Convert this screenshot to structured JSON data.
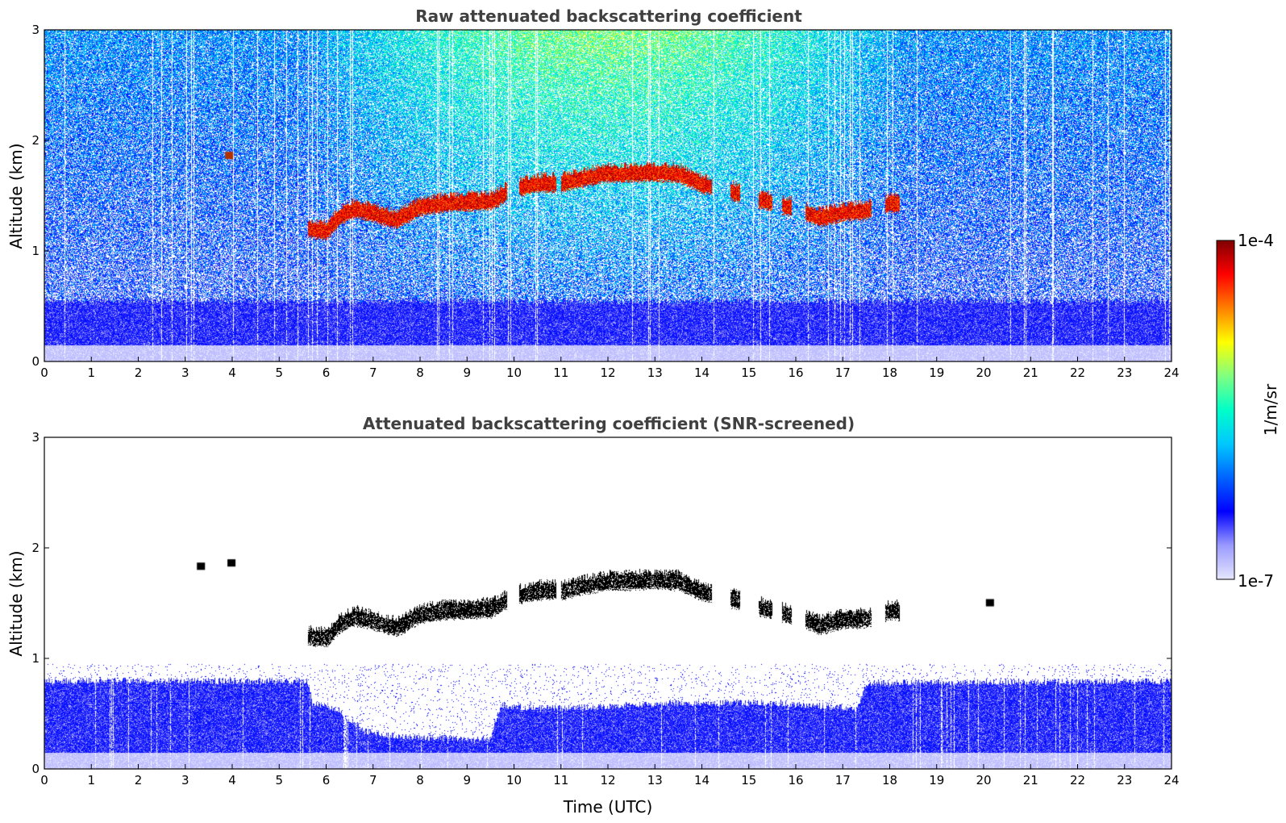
{
  "chart_data": [
    {
      "type": "heatmap",
      "title": "Raw attenuated backscattering coefficient",
      "xlabel": "",
      "ylabel": "Altitude (km)",
      "xlim": [
        0,
        24
      ],
      "ylim": [
        0,
        3
      ],
      "x_ticks": [
        "0",
        "1",
        "2",
        "3",
        "4",
        "5",
        "6",
        "7",
        "8",
        "9",
        "10",
        "11",
        "12",
        "13",
        "14",
        "15",
        "16",
        "17",
        "18",
        "19",
        "20",
        "21",
        "22",
        "23",
        "24"
      ],
      "y_ticks": [
        "0",
        "1",
        "2",
        "3"
      ],
      "noise": "full",
      "aerosol_layer": [
        {
          "x": 0.0,
          "top_km": 0.5
        },
        {
          "x": 24.0,
          "top_km": 0.5
        }
      ],
      "cloud_layer": [
        {
          "x": 5.6,
          "km": 1.22
        },
        {
          "x": 6.0,
          "km": 1.2
        },
        {
          "x": 6.3,
          "km": 1.34
        },
        {
          "x": 6.6,
          "km": 1.4
        },
        {
          "x": 7.0,
          "km": 1.36
        },
        {
          "x": 7.5,
          "km": 1.3
        },
        {
          "x": 8.0,
          "km": 1.42
        },
        {
          "x": 8.5,
          "km": 1.45
        },
        {
          "x": 9.0,
          "km": 1.46
        },
        {
          "x": 9.5,
          "km": 1.47
        },
        {
          "x": 10.0,
          "km": 1.58
        },
        {
          "x": 10.5,
          "km": 1.63
        },
        {
          "x": 11.0,
          "km": 1.63
        },
        {
          "x": 11.5,
          "km": 1.68
        },
        {
          "x": 12.0,
          "km": 1.72
        },
        {
          "x": 12.5,
          "km": 1.72
        },
        {
          "x": 13.0,
          "km": 1.73
        },
        {
          "x": 13.5,
          "km": 1.72
        },
        {
          "x": 14.0,
          "km": 1.62
        },
        {
          "x": 14.5,
          "km": 1.58
        },
        {
          "x": 15.0,
          "km": 1.5
        },
        {
          "x": 15.5,
          "km": 1.46
        },
        {
          "x": 16.0,
          "km": 1.4
        },
        {
          "x": 16.5,
          "km": 1.32
        },
        {
          "x": 17.0,
          "km": 1.37
        },
        {
          "x": 17.5,
          "km": 1.38
        },
        {
          "x": 18.0,
          "km": 1.45
        },
        {
          "x": 18.2,
          "km": 1.45
        }
      ],
      "cloud_gaps": [
        [
          9.85,
          10.1
        ],
        [
          10.9,
          11.0
        ],
        [
          14.2,
          14.6
        ],
        [
          14.8,
          15.2
        ],
        [
          15.5,
          15.7
        ],
        [
          15.9,
          16.2
        ],
        [
          17.6,
          17.9
        ]
      ],
      "isolated_features": [
        {
          "x": 3.9,
          "km": 1.86
        }
      ]
    },
    {
      "type": "heatmap",
      "title": "Attenuated backscattering coefficient (SNR-screened)",
      "xlabel": "Time (UTC)",
      "ylabel": "Altitude (km)",
      "xlim": [
        0,
        24
      ],
      "ylim": [
        0,
        3
      ],
      "x_ticks": [
        "0",
        "1",
        "2",
        "3",
        "4",
        "5",
        "6",
        "7",
        "8",
        "9",
        "10",
        "11",
        "12",
        "13",
        "14",
        "15",
        "16",
        "17",
        "18",
        "19",
        "20",
        "21",
        "22",
        "23",
        "24"
      ],
      "y_ticks": [
        "0",
        "1",
        "2",
        "3"
      ],
      "noise": "screened",
      "aerosol_layer_top": [
        {
          "x": 0.0,
          "km": 0.8
        },
        {
          "x": 5.6,
          "km": 0.8
        },
        {
          "x": 5.7,
          "km": 0.6
        },
        {
          "x": 6.2,
          "km": 0.55
        },
        {
          "x": 6.8,
          "km": 0.35
        },
        {
          "x": 7.5,
          "km": 0.3
        },
        {
          "x": 8.5,
          "km": 0.28
        },
        {
          "x": 9.5,
          "km": 0.27
        },
        {
          "x": 9.7,
          "km": 0.58
        },
        {
          "x": 10.5,
          "km": 0.55
        },
        {
          "x": 12.0,
          "km": 0.57
        },
        {
          "x": 13.5,
          "km": 0.6
        },
        {
          "x": 14.5,
          "km": 0.6
        },
        {
          "x": 15.5,
          "km": 0.6
        },
        {
          "x": 16.5,
          "km": 0.57
        },
        {
          "x": 17.3,
          "km": 0.55
        },
        {
          "x": 17.5,
          "km": 0.78
        },
        {
          "x": 24.0,
          "km": 0.8
        }
      ],
      "cloud_layer": "same as panel 1",
      "isolated_features": [
        {
          "x": 3.3,
          "km": 1.83
        },
        {
          "x": 3.95,
          "km": 1.86
        },
        {
          "x": 20.1,
          "km": 1.5
        }
      ]
    }
  ],
  "colorbar": {
    "label": "1/m/sr",
    "max_label": "1e-4",
    "min_label": "1e-7",
    "scale": "log",
    "range": [
      1e-07,
      0.0001
    ],
    "colormap": [
      "#e6e6ff",
      "#9a9aff",
      "#0000ff",
      "#0064ff",
      "#00c8ff",
      "#00ffc8",
      "#80ff80",
      "#ffff00",
      "#ff8000",
      "#ff0000",
      "#800000"
    ]
  }
}
